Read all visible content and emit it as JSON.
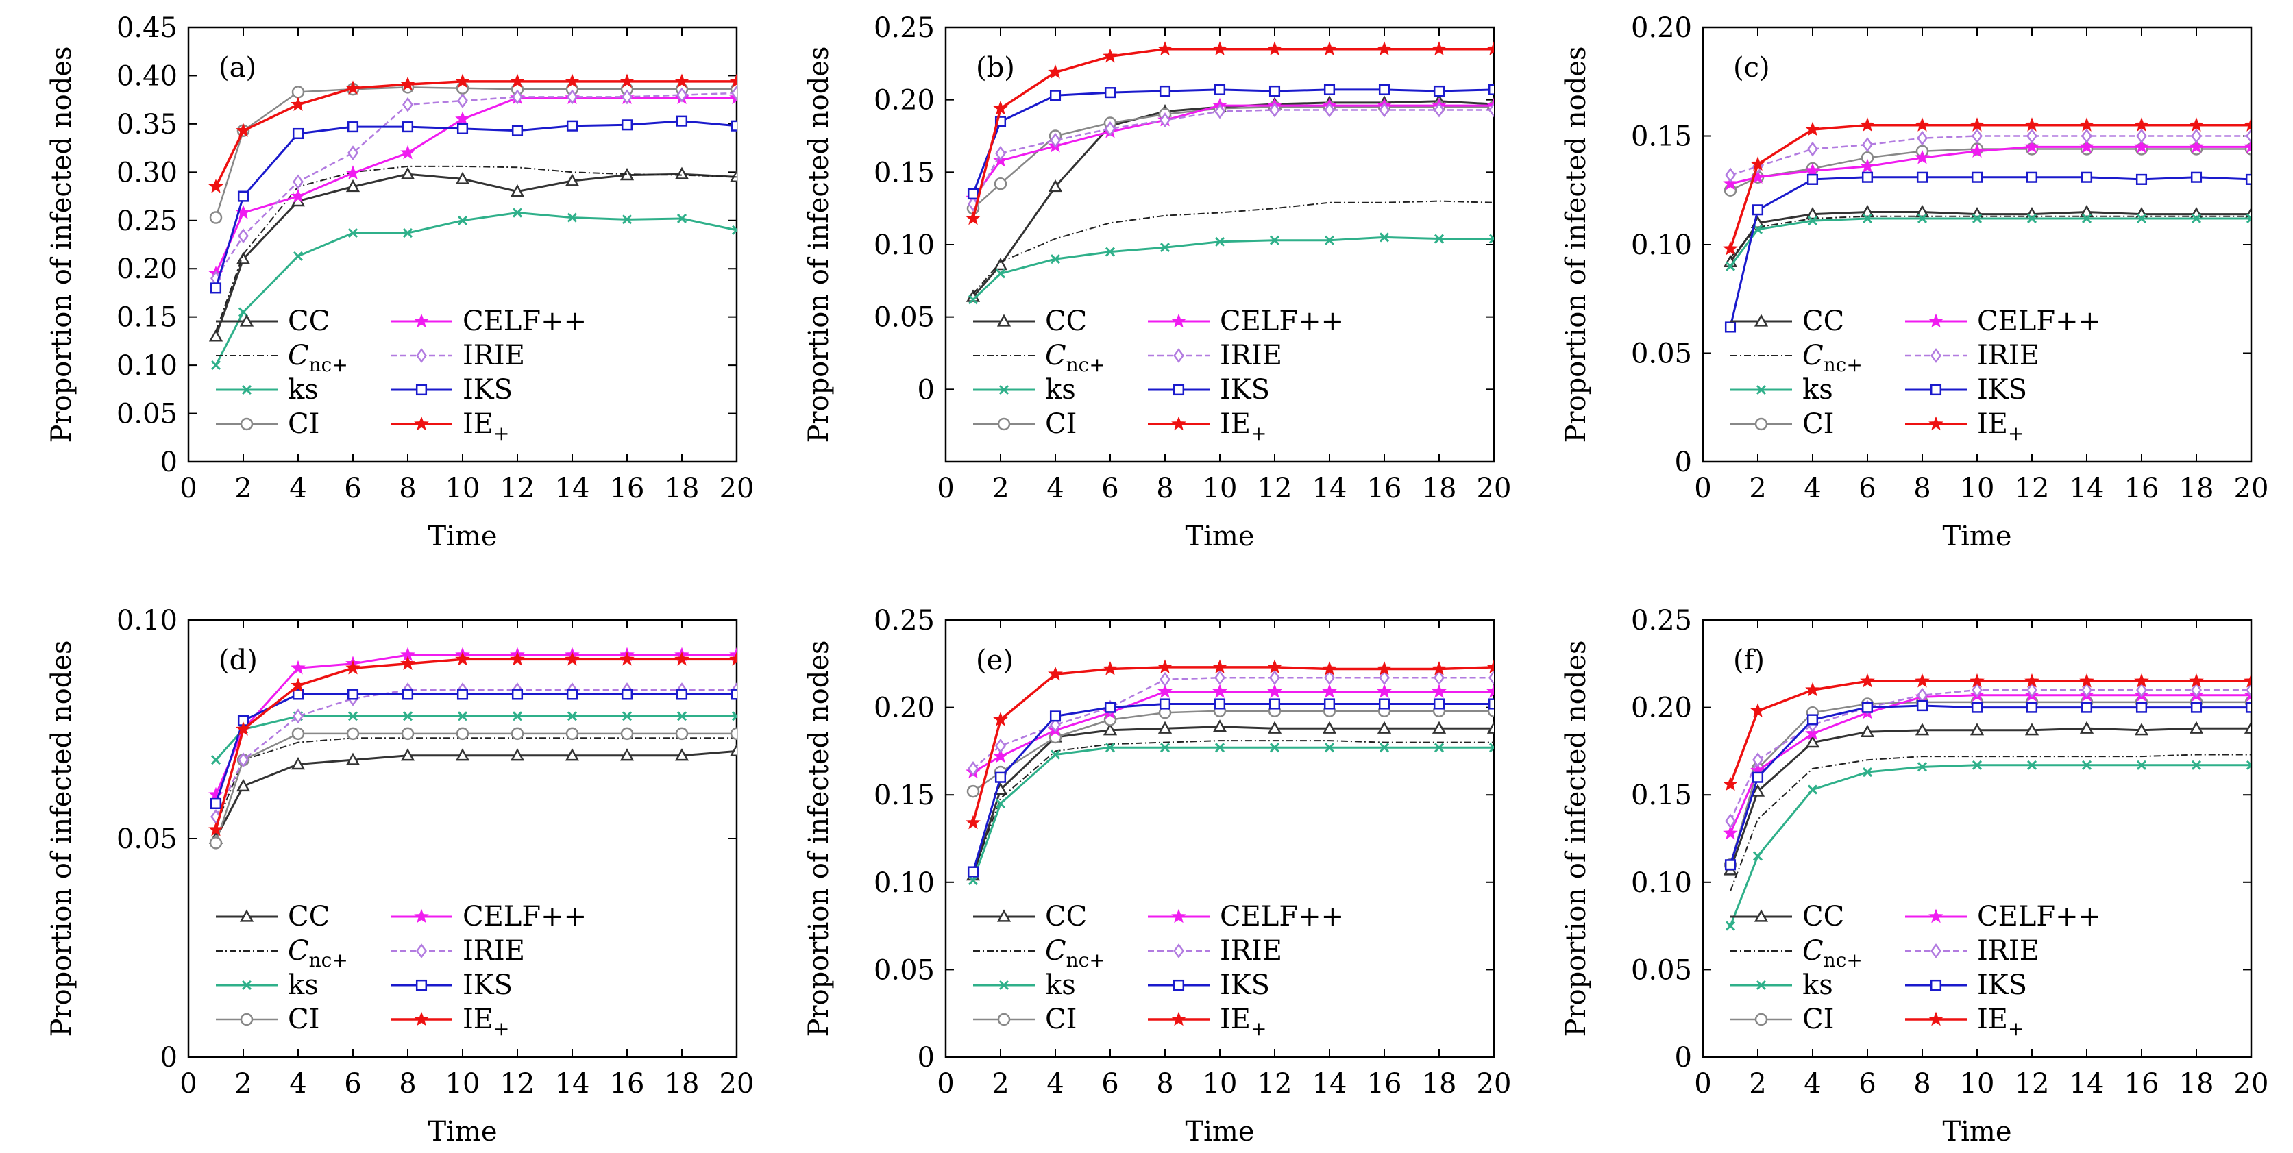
{
  "colors": {
    "CC": "#333333",
    "Cnc": "#222222",
    "ks": "#2fb08a",
    "CI": "#888888",
    "CELF": "#f01cf0",
    "IRIE": "#b27be0",
    "IKS": "#1a1acc",
    "IE": "#ee1111"
  },
  "legend_labels": {
    "CC": "CC",
    "Cnc_main": "C",
    "Cnc_sub": "nc+",
    "ks": "ks",
    "CI": "CI",
    "CELF": "CELF++",
    "IRIE": "IRIE",
    "IKS": "IKS",
    "IE_main": "IE",
    "IE_sub": "+"
  },
  "chart_data": [
    {
      "type": "line",
      "label": "(a)",
      "xlabel": "Time",
      "ylabel": "Proportion of infected nodes",
      "xlim": [
        0,
        20
      ],
      "ylim": [
        0,
        0.45
      ],
      "xticks": [
        "0",
        "2",
        "4",
        "6",
        "8",
        "10",
        "12",
        "14",
        "16",
        "18",
        "20"
      ],
      "yticks": [
        "0",
        "0.05",
        "0.10",
        "0.15",
        "0.20",
        "0.25",
        "0.30",
        "0.35",
        "0.40",
        "0.45"
      ],
      "x": [
        1,
        2,
        4,
        6,
        8,
        10,
        12,
        14,
        16,
        18,
        20
      ],
      "series": [
        {
          "name": "CC",
          "values": [
            0.13,
            0.21,
            0.27,
            0.285,
            0.298,
            0.293,
            0.28,
            0.291,
            0.297,
            0.298,
            0.295
          ]
        },
        {
          "name": "Cnc+",
          "values": [
            0.135,
            0.215,
            0.285,
            0.3,
            0.306,
            0.306,
            0.305,
            0.3,
            0.298,
            0.297,
            0.295
          ]
        },
        {
          "name": "ks",
          "values": [
            0.1,
            0.155,
            0.213,
            0.237,
            0.237,
            0.25,
            0.258,
            0.253,
            0.251,
            0.252,
            0.24
          ]
        },
        {
          "name": "CI",
          "values": [
            0.253,
            0.343,
            0.383,
            0.386,
            0.388,
            0.387,
            0.386,
            0.386,
            0.386,
            0.386,
            0.386
          ]
        },
        {
          "name": "CELF++",
          "values": [
            0.195,
            0.258,
            0.275,
            0.299,
            0.32,
            0.355,
            0.377,
            0.377,
            0.377,
            0.377,
            0.377
          ]
        },
        {
          "name": "IRIE",
          "values": [
            0.19,
            0.234,
            0.29,
            0.32,
            0.37,
            0.374,
            0.378,
            0.378,
            0.378,
            0.38,
            0.382
          ]
        },
        {
          "name": "IKS",
          "values": [
            0.18,
            0.275,
            0.34,
            0.347,
            0.347,
            0.345,
            0.343,
            0.348,
            0.349,
            0.353,
            0.348
          ]
        },
        {
          "name": "IE+",
          "values": [
            0.285,
            0.343,
            0.37,
            0.387,
            0.391,
            0.394,
            0.394,
            0.394,
            0.394,
            0.394,
            0.394
          ]
        }
      ]
    },
    {
      "type": "line",
      "label": "(b)",
      "xlabel": "Time",
      "ylabel": "Proportion of infected nodes",
      "xlim": [
        0,
        20
      ],
      "ylim": [
        -0.05,
        0.25
      ],
      "xticks": [
        "0",
        "2",
        "4",
        "6",
        "8",
        "10",
        "12",
        "14",
        "16",
        "18",
        "20"
      ],
      "yticks": [
        "0",
        "0.05",
        "0.10",
        "0.15",
        "0.20",
        "0.25"
      ],
      "x": [
        1,
        2,
        4,
        6,
        8,
        10,
        12,
        14,
        16,
        18,
        20
      ],
      "series": [
        {
          "name": "CC",
          "values": [
            0.064,
            0.086,
            0.14,
            0.182,
            0.192,
            0.195,
            0.197,
            0.198,
            0.198,
            0.199,
            0.197
          ]
        },
        {
          "name": "Cnc+",
          "values": [
            0.066,
            0.088,
            0.104,
            0.115,
            0.12,
            0.122,
            0.125,
            0.129,
            0.129,
            0.13,
            0.129
          ]
        },
        {
          "name": "ks",
          "values": [
            0.062,
            0.08,
            0.09,
            0.095,
            0.098,
            0.102,
            0.103,
            0.103,
            0.105,
            0.104,
            0.104
          ]
        },
        {
          "name": "CI",
          "values": [
            0.125,
            0.142,
            0.175,
            0.184,
            0.19,
            0.194,
            0.195,
            0.195,
            0.195,
            0.195,
            0.195
          ]
        },
        {
          "name": "CELF++",
          "values": [
            0.132,
            0.158,
            0.168,
            0.178,
            0.186,
            0.196,
            0.196,
            0.196,
            0.196,
            0.196,
            0.196
          ]
        },
        {
          "name": "IRIE",
          "values": [
            0.128,
            0.163,
            0.172,
            0.18,
            0.186,
            0.192,
            0.193,
            0.193,
            0.193,
            0.193,
            0.193
          ]
        },
        {
          "name": "IKS",
          "values": [
            0.135,
            0.185,
            0.203,
            0.205,
            0.206,
            0.207,
            0.206,
            0.207,
            0.207,
            0.206,
            0.207
          ]
        },
        {
          "name": "IE+",
          "values": [
            0.118,
            0.194,
            0.219,
            0.23,
            0.235,
            0.235,
            0.235,
            0.235,
            0.235,
            0.235,
            0.235
          ]
        }
      ]
    },
    {
      "type": "line",
      "label": "(c)",
      "xlabel": "Time",
      "ylabel": "Proportion of infected nodes",
      "xlim": [
        0,
        20
      ],
      "ylim": [
        0,
        0.2
      ],
      "xticks": [
        "0",
        "2",
        "4",
        "6",
        "8",
        "10",
        "12",
        "14",
        "16",
        "18",
        "20"
      ],
      "yticks": [
        "0",
        "0.05",
        "0.10",
        "0.15",
        "0.20"
      ],
      "x": [
        1,
        2,
        4,
        6,
        8,
        10,
        12,
        14,
        16,
        18,
        20
      ],
      "series": [
        {
          "name": "CC",
          "values": [
            0.092,
            0.11,
            0.114,
            0.115,
            0.115,
            0.114,
            0.114,
            0.115,
            0.114,
            0.114,
            0.114
          ]
        },
        {
          "name": "Cnc+",
          "values": [
            0.094,
            0.108,
            0.112,
            0.113,
            0.113,
            0.113,
            0.113,
            0.113,
            0.113,
            0.113,
            0.113
          ]
        },
        {
          "name": "ks",
          "values": [
            0.09,
            0.107,
            0.111,
            0.112,
            0.112,
            0.112,
            0.112,
            0.112,
            0.112,
            0.112,
            0.112
          ]
        },
        {
          "name": "CI",
          "values": [
            0.125,
            0.131,
            0.135,
            0.14,
            0.143,
            0.144,
            0.144,
            0.144,
            0.144,
            0.144,
            0.144
          ]
        },
        {
          "name": "CELF++",
          "values": [
            0.128,
            0.131,
            0.134,
            0.136,
            0.14,
            0.143,
            0.145,
            0.145,
            0.145,
            0.145,
            0.145
          ]
        },
        {
          "name": "IRIE",
          "values": [
            0.132,
            0.136,
            0.144,
            0.146,
            0.149,
            0.15,
            0.15,
            0.15,
            0.15,
            0.15,
            0.15
          ]
        },
        {
          "name": "IKS",
          "values": [
            0.062,
            0.116,
            0.13,
            0.131,
            0.131,
            0.131,
            0.131,
            0.131,
            0.13,
            0.131,
            0.13
          ]
        },
        {
          "name": "IE+",
          "values": [
            0.098,
            0.137,
            0.153,
            0.155,
            0.155,
            0.155,
            0.155,
            0.155,
            0.155,
            0.155,
            0.155
          ]
        }
      ]
    },
    {
      "type": "line",
      "label": "(d)",
      "xlabel": "Time",
      "ylabel": "Proportion of infected nodes",
      "xlim": [
        0,
        20
      ],
      "ylim": [
        0,
        0.1
      ],
      "xticks": [
        "0",
        "2",
        "4",
        "6",
        "8",
        "10",
        "12",
        "14",
        "16",
        "18",
        "20"
      ],
      "yticks": [
        "0",
        "0.05",
        "0.10"
      ],
      "x": [
        1,
        2,
        4,
        6,
        8,
        10,
        12,
        14,
        16,
        18,
        20
      ],
      "series": [
        {
          "name": "CC",
          "values": [
            0.05,
            0.062,
            0.067,
            0.068,
            0.069,
            0.069,
            0.069,
            0.069,
            0.069,
            0.069,
            0.07
          ]
        },
        {
          "name": "Cnc+",
          "values": [
            0.053,
            0.068,
            0.072,
            0.073,
            0.073,
            0.073,
            0.073,
            0.073,
            0.073,
            0.073,
            0.073
          ]
        },
        {
          "name": "ks",
          "values": [
            0.068,
            0.075,
            0.078,
            0.078,
            0.078,
            0.078,
            0.078,
            0.078,
            0.078,
            0.078,
            0.078
          ]
        },
        {
          "name": "CI",
          "values": [
            0.049,
            0.068,
            0.074,
            0.074,
            0.074,
            0.074,
            0.074,
            0.074,
            0.074,
            0.074,
            0.074
          ]
        },
        {
          "name": "CELF++",
          "values": [
            0.06,
            0.075,
            0.089,
            0.09,
            0.092,
            0.092,
            0.092,
            0.092,
            0.092,
            0.092,
            0.092
          ]
        },
        {
          "name": "IRIE",
          "values": [
            0.055,
            0.068,
            0.078,
            0.082,
            0.084,
            0.084,
            0.084,
            0.084,
            0.084,
            0.084,
            0.084
          ]
        },
        {
          "name": "IKS",
          "values": [
            0.058,
            0.077,
            0.083,
            0.083,
            0.083,
            0.083,
            0.083,
            0.083,
            0.083,
            0.083,
            0.083
          ]
        },
        {
          "name": "IE+",
          "values": [
            0.052,
            0.075,
            0.085,
            0.089,
            0.09,
            0.091,
            0.091,
            0.091,
            0.091,
            0.091,
            0.091
          ]
        }
      ]
    },
    {
      "type": "line",
      "label": "(e)",
      "xlabel": "Time",
      "ylabel": "Proportion of infected nodes",
      "xlim": [
        0,
        20
      ],
      "ylim": [
        0,
        0.25
      ],
      "xticks": [
        "0",
        "2",
        "4",
        "6",
        "8",
        "10",
        "12",
        "14",
        "16",
        "18",
        "20"
      ],
      "yticks": [
        "0",
        "0.05",
        "0.10",
        "0.15",
        "0.20",
        "0.25"
      ],
      "x": [
        1,
        2,
        4,
        6,
        8,
        10,
        12,
        14,
        16,
        18,
        20
      ],
      "series": [
        {
          "name": "CC",
          "values": [
            0.104,
            0.153,
            0.183,
            0.187,
            0.188,
            0.189,
            0.188,
            0.188,
            0.188,
            0.188,
            0.188
          ]
        },
        {
          "name": "Cnc+",
          "values": [
            0.105,
            0.148,
            0.175,
            0.179,
            0.18,
            0.181,
            0.181,
            0.181,
            0.18,
            0.18,
            0.18
          ]
        },
        {
          "name": "ks",
          "values": [
            0.101,
            0.145,
            0.173,
            0.177,
            0.177,
            0.177,
            0.177,
            0.177,
            0.177,
            0.177,
            0.177
          ]
        },
        {
          "name": "CI",
          "values": [
            0.152,
            0.163,
            0.183,
            0.193,
            0.197,
            0.198,
            0.198,
            0.198,
            0.198,
            0.198,
            0.198
          ]
        },
        {
          "name": "CELF++",
          "values": [
            0.163,
            0.172,
            0.187,
            0.197,
            0.209,
            0.209,
            0.209,
            0.209,
            0.209,
            0.209,
            0.209
          ]
        },
        {
          "name": "IRIE",
          "values": [
            0.165,
            0.178,
            0.19,
            0.2,
            0.216,
            0.217,
            0.217,
            0.217,
            0.217,
            0.217,
            0.217
          ]
        },
        {
          "name": "IKS",
          "values": [
            0.106,
            0.16,
            0.195,
            0.2,
            0.202,
            0.202,
            0.202,
            0.202,
            0.202,
            0.202,
            0.202
          ]
        },
        {
          "name": "IE+",
          "values": [
            0.134,
            0.193,
            0.219,
            0.222,
            0.223,
            0.223,
            0.223,
            0.222,
            0.222,
            0.222,
            0.223
          ]
        }
      ]
    },
    {
      "type": "line",
      "label": "(f)",
      "xlabel": "Time",
      "ylabel": "Proportion of infected nodes",
      "xlim": [
        0,
        20
      ],
      "ylim": [
        0,
        0.25
      ],
      "xticks": [
        "0",
        "2",
        "4",
        "6",
        "8",
        "10",
        "12",
        "14",
        "16",
        "18",
        "20"
      ],
      "yticks": [
        "0",
        "0.05",
        "0.10",
        "0.15",
        "0.20",
        "0.25"
      ],
      "x": [
        1,
        2,
        4,
        6,
        8,
        10,
        12,
        14,
        16,
        18,
        20
      ],
      "series": [
        {
          "name": "CC",
          "values": [
            0.107,
            0.152,
            0.18,
            0.186,
            0.187,
            0.187,
            0.187,
            0.188,
            0.187,
            0.188,
            0.188
          ]
        },
        {
          "name": "Cnc+",
          "values": [
            0.095,
            0.136,
            0.165,
            0.17,
            0.172,
            0.172,
            0.172,
            0.172,
            0.172,
            0.173,
            0.173
          ]
        },
        {
          "name": "ks",
          "values": [
            0.075,
            0.115,
            0.153,
            0.163,
            0.166,
            0.167,
            0.167,
            0.167,
            0.167,
            0.167,
            0.167
          ]
        },
        {
          "name": "CI",
          "values": [
            0.11,
            0.165,
            0.197,
            0.202,
            0.203,
            0.203,
            0.203,
            0.203,
            0.203,
            0.203,
            0.203
          ]
        },
        {
          "name": "CELF++",
          "values": [
            0.128,
            0.164,
            0.185,
            0.197,
            0.206,
            0.207,
            0.207,
            0.207,
            0.207,
            0.207,
            0.207
          ]
        },
        {
          "name": "IRIE",
          "values": [
            0.135,
            0.17,
            0.19,
            0.2,
            0.207,
            0.21,
            0.21,
            0.21,
            0.21,
            0.21,
            0.21
          ]
        },
        {
          "name": "IKS",
          "values": [
            0.11,
            0.16,
            0.193,
            0.2,
            0.201,
            0.2,
            0.2,
            0.2,
            0.2,
            0.2,
            0.2
          ]
        },
        {
          "name": "IE+",
          "values": [
            0.156,
            0.198,
            0.21,
            0.215,
            0.215,
            0.215,
            0.215,
            0.215,
            0.215,
            0.215,
            0.215
          ]
        }
      ]
    }
  ]
}
